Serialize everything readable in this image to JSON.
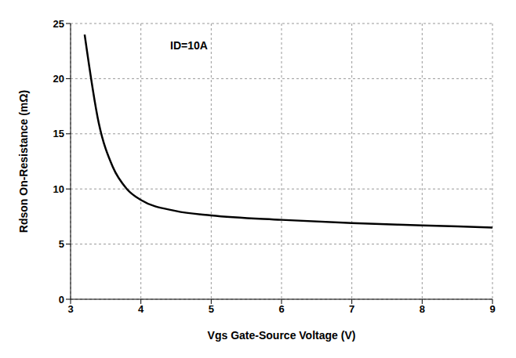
{
  "chart_data": {
    "type": "line",
    "x_label": "Vgs Gate-Source Voltage (V)",
    "y_label": "Rdson On-Resistance (mΩ)",
    "annotations": [
      "ID=10A"
    ],
    "x": [
      3.2,
      3.4,
      3.6,
      3.8,
      4,
      4.5,
      5,
      6,
      7,
      8,
      9
    ],
    "values": [
      24,
      16,
      12,
      10,
      9,
      8,
      7.6,
      7.2,
      6.9,
      6.7,
      6.5
    ],
    "color": "#000000",
    "xlim": [
      3,
      9
    ],
    "ylim": [
      0,
      25
    ],
    "xticks": [
      3,
      4,
      5,
      6,
      7,
      8,
      9
    ],
    "yticks": [
      0,
      5,
      10,
      15,
      20,
      25
    ],
    "grid": true
  }
}
